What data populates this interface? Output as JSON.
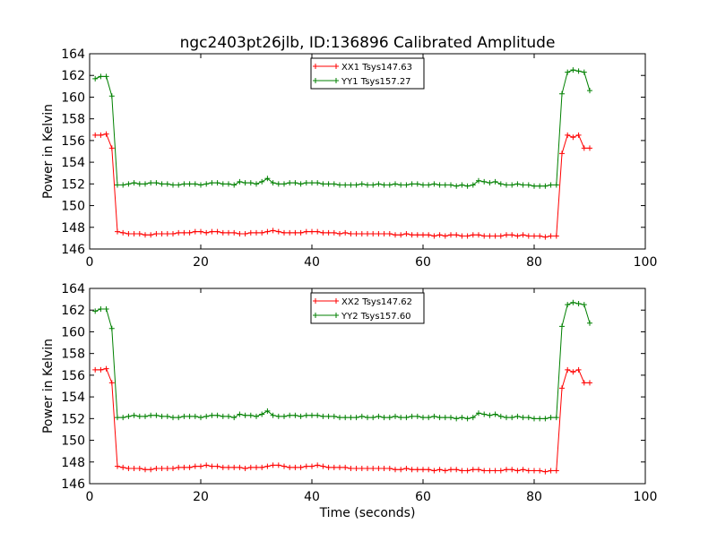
{
  "title": "ngc2403pt26jlb, ID:136896 Calibrated Amplitude",
  "chart_data": [
    {
      "type": "line",
      "xlabel": "",
      "ylabel": "Power in Kelvin",
      "xlim": [
        0,
        100
      ],
      "ylim": [
        146,
        164
      ],
      "xticks": [
        "0",
        "20",
        "40",
        "60",
        "80",
        "100"
      ],
      "yticks": [
        "146",
        "148",
        "150",
        "152",
        "154",
        "156",
        "158",
        "160",
        "162",
        "164"
      ],
      "grid": false,
      "legend_position": "top-center",
      "x": [
        1,
        2,
        3,
        4,
        5,
        6,
        7,
        8,
        9,
        10,
        11,
        12,
        13,
        14,
        15,
        16,
        17,
        18,
        19,
        20,
        21,
        22,
        23,
        24,
        25,
        26,
        27,
        28,
        29,
        30,
        31,
        32,
        33,
        34,
        35,
        36,
        37,
        38,
        39,
        40,
        41,
        42,
        43,
        44,
        45,
        46,
        47,
        48,
        49,
        50,
        51,
        52,
        53,
        54,
        55,
        56,
        57,
        58,
        59,
        60,
        61,
        62,
        63,
        64,
        65,
        66,
        67,
        68,
        69,
        70,
        71,
        72,
        73,
        74,
        75,
        76,
        77,
        78,
        79,
        80,
        81,
        82,
        83,
        84,
        85,
        86,
        87,
        88,
        89,
        90
      ],
      "series": [
        {
          "name": "XX1 Tsys147.63",
          "color": "#ff0000",
          "values": [
            156.5,
            156.5,
            156.6,
            155.3,
            147.6,
            147.5,
            147.4,
            147.4,
            147.4,
            147.3,
            147.3,
            147.4,
            147.4,
            147.4,
            147.4,
            147.5,
            147.5,
            147.5,
            147.6,
            147.6,
            147.5,
            147.6,
            147.6,
            147.5,
            147.5,
            147.5,
            147.4,
            147.4,
            147.5,
            147.5,
            147.5,
            147.6,
            147.7,
            147.6,
            147.5,
            147.5,
            147.5,
            147.5,
            147.6,
            147.6,
            147.6,
            147.5,
            147.5,
            147.5,
            147.4,
            147.5,
            147.4,
            147.4,
            147.4,
            147.4,
            147.4,
            147.4,
            147.4,
            147.4,
            147.3,
            147.3,
            147.4,
            147.3,
            147.3,
            147.3,
            147.3,
            147.2,
            147.3,
            147.2,
            147.3,
            147.3,
            147.2,
            147.2,
            147.3,
            147.3,
            147.2,
            147.2,
            147.2,
            147.2,
            147.3,
            147.3,
            147.2,
            147.3,
            147.2,
            147.2,
            147.2,
            147.1,
            147.2,
            147.2,
            154.8,
            156.5,
            156.3,
            156.5,
            155.3,
            155.3
          ]
        },
        {
          "name": "YY1 Tsys157.27",
          "color": "#008000",
          "values": [
            161.7,
            161.9,
            161.9,
            160.1,
            151.9,
            151.9,
            152.0,
            152.1,
            152.0,
            152.0,
            152.1,
            152.1,
            152.0,
            152.0,
            151.9,
            151.9,
            152.0,
            152.0,
            152.0,
            151.9,
            152.0,
            152.1,
            152.1,
            152.0,
            152.0,
            151.9,
            152.2,
            152.1,
            152.1,
            152.0,
            152.2,
            152.5,
            152.1,
            152.0,
            152.0,
            152.1,
            152.1,
            152.0,
            152.1,
            152.1,
            152.1,
            152.0,
            152.0,
            152.0,
            151.9,
            151.9,
            151.9,
            151.9,
            152.0,
            151.9,
            151.9,
            152.0,
            151.9,
            151.9,
            152.0,
            151.9,
            151.9,
            152.0,
            152.0,
            151.9,
            151.9,
            152.0,
            151.9,
            151.9,
            151.9,
            151.8,
            151.9,
            151.8,
            151.9,
            152.3,
            152.2,
            152.1,
            152.2,
            152.0,
            151.9,
            151.9,
            152.0,
            151.9,
            151.9,
            151.8,
            151.8,
            151.8,
            151.9,
            151.9,
            160.3,
            162.3,
            162.5,
            162.4,
            162.3,
            160.6
          ]
        }
      ]
    },
    {
      "type": "line",
      "xlabel": "Time (seconds)",
      "ylabel": "Power in Kelvin",
      "xlim": [
        0,
        100
      ],
      "ylim": [
        146,
        164
      ],
      "xticks": [
        "0",
        "20",
        "40",
        "60",
        "80",
        "100"
      ],
      "yticks": [
        "146",
        "148",
        "150",
        "152",
        "154",
        "156",
        "158",
        "160",
        "162",
        "164"
      ],
      "grid": false,
      "legend_position": "top-center",
      "x": [
        1,
        2,
        3,
        4,
        5,
        6,
        7,
        8,
        9,
        10,
        11,
        12,
        13,
        14,
        15,
        16,
        17,
        18,
        19,
        20,
        21,
        22,
        23,
        24,
        25,
        26,
        27,
        28,
        29,
        30,
        31,
        32,
        33,
        34,
        35,
        36,
        37,
        38,
        39,
        40,
        41,
        42,
        43,
        44,
        45,
        46,
        47,
        48,
        49,
        50,
        51,
        52,
        53,
        54,
        55,
        56,
        57,
        58,
        59,
        60,
        61,
        62,
        63,
        64,
        65,
        66,
        67,
        68,
        69,
        70,
        71,
        72,
        73,
        74,
        75,
        76,
        77,
        78,
        79,
        80,
        81,
        82,
        83,
        84,
        85,
        86,
        87,
        88,
        89,
        90
      ],
      "series": [
        {
          "name": "XX2 Tsys147.62",
          "color": "#ff0000",
          "values": [
            156.5,
            156.5,
            156.6,
            155.3,
            147.6,
            147.5,
            147.4,
            147.4,
            147.4,
            147.3,
            147.3,
            147.4,
            147.4,
            147.4,
            147.4,
            147.5,
            147.5,
            147.5,
            147.6,
            147.6,
            147.7,
            147.6,
            147.6,
            147.5,
            147.5,
            147.5,
            147.5,
            147.4,
            147.5,
            147.5,
            147.5,
            147.6,
            147.7,
            147.7,
            147.6,
            147.5,
            147.5,
            147.5,
            147.6,
            147.6,
            147.7,
            147.6,
            147.5,
            147.5,
            147.5,
            147.5,
            147.4,
            147.4,
            147.4,
            147.4,
            147.4,
            147.4,
            147.4,
            147.4,
            147.3,
            147.3,
            147.4,
            147.3,
            147.3,
            147.3,
            147.3,
            147.2,
            147.3,
            147.2,
            147.3,
            147.3,
            147.2,
            147.2,
            147.3,
            147.3,
            147.2,
            147.2,
            147.2,
            147.2,
            147.3,
            147.3,
            147.2,
            147.3,
            147.2,
            147.2,
            147.2,
            147.1,
            147.2,
            147.2,
            154.8,
            156.5,
            156.3,
            156.5,
            155.3,
            155.3
          ]
        },
        {
          "name": "YY2 Tsys157.60",
          "color": "#008000",
          "values": [
            161.9,
            162.1,
            162.1,
            160.3,
            152.1,
            152.1,
            152.2,
            152.3,
            152.2,
            152.2,
            152.3,
            152.3,
            152.2,
            152.2,
            152.1,
            152.1,
            152.2,
            152.2,
            152.2,
            152.1,
            152.2,
            152.3,
            152.3,
            152.2,
            152.2,
            152.1,
            152.4,
            152.3,
            152.3,
            152.2,
            152.4,
            152.7,
            152.3,
            152.2,
            152.2,
            152.3,
            152.3,
            152.2,
            152.3,
            152.3,
            152.3,
            152.2,
            152.2,
            152.2,
            152.1,
            152.1,
            152.1,
            152.1,
            152.2,
            152.1,
            152.1,
            152.2,
            152.1,
            152.1,
            152.2,
            152.1,
            152.1,
            152.2,
            152.2,
            152.1,
            152.1,
            152.2,
            152.1,
            152.1,
            152.1,
            152.0,
            152.1,
            152.0,
            152.1,
            152.5,
            152.4,
            152.3,
            152.4,
            152.2,
            152.1,
            152.1,
            152.2,
            152.1,
            152.1,
            152.0,
            152.0,
            152.0,
            152.1,
            152.1,
            160.5,
            162.5,
            162.7,
            162.6,
            162.5,
            160.8
          ]
        }
      ]
    }
  ]
}
